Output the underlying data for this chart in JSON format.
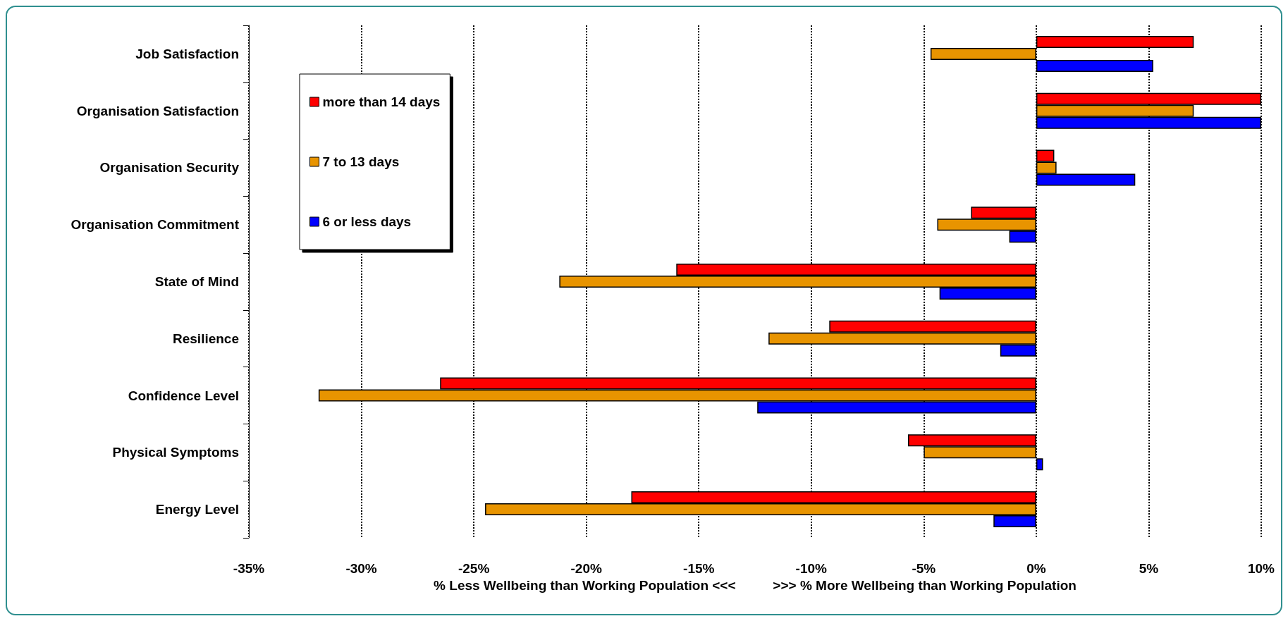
{
  "chart_data": {
    "type": "bar",
    "orientation": "horizontal",
    "xlabel": "% Less Wellbeing than Working Population <<<          >>> % More Wellbeing than Working Population",
    "categories": [
      "Job Satisfaction",
      "Organisation Satisfaction",
      "Organisation Security",
      "Organisation Commitment",
      "State of Mind",
      "Resilience",
      "Confidence Level",
      "Physical Symptoms",
      "Energy Level"
    ],
    "series": [
      {
        "name": "more than 14 days",
        "color": "#ff0000",
        "values": [
          7.0,
          10,
          0.8,
          -2.9,
          -16.0,
          -9.2,
          -26.5,
          -5.7,
          -18.0
        ]
      },
      {
        "name": "7 to 13 days",
        "color": "#e89400",
        "values": [
          -4.7,
          7.0,
          0.9,
          -4.4,
          -21.2,
          -11.9,
          -31.9,
          -5.0,
          -24.5
        ]
      },
      {
        "name": "6 or less days",
        "color": "#0000ff",
        "values": [
          5.2,
          10,
          4.4,
          -1.2,
          -4.3,
          -1.6,
          -12.4,
          0.3,
          -1.9
        ]
      }
    ],
    "xlim": [
      -35,
      10
    ],
    "xticks": [
      {
        "value": -35,
        "label": "-35%"
      },
      {
        "value": -30,
        "label": "-30%"
      },
      {
        "value": -25,
        "label": "-25%"
      },
      {
        "value": -20,
        "label": "-20%"
      },
      {
        "value": -15,
        "label": "-15%"
      },
      {
        "value": -10,
        "label": "-10%"
      },
      {
        "value": -5,
        "label": "-5%"
      },
      {
        "value": 0,
        "label": "0%"
      },
      {
        "value": 5,
        "label": "5%"
      },
      {
        "value": 10,
        "label": "10%"
      }
    ],
    "grid": "x",
    "legend": "top left"
  }
}
